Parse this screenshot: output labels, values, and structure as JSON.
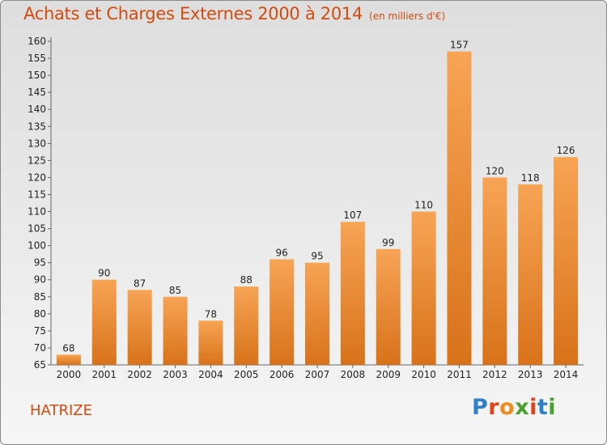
{
  "header": {
    "title": "Achats et Charges Externes 2000 à 2014",
    "subtitle": "(en milliers d'€)"
  },
  "footer": {
    "city": "HATRIZE",
    "brand": "Proxiti"
  },
  "colors": {
    "accent": "#d24a0e",
    "bar_top": "#f7a455",
    "bar_bottom": "#d8721a"
  },
  "chart_data": {
    "type": "bar",
    "title": "Achats et Charges Externes 2000 à 2014",
    "subtitle": "(en milliers d'€)",
    "xlabel": "",
    "ylabel": "",
    "categories": [
      "2000",
      "2001",
      "2002",
      "2003",
      "2004",
      "2005",
      "2006",
      "2007",
      "2008",
      "2009",
      "2010",
      "2011",
      "2012",
      "2013",
      "2014"
    ],
    "values": [
      68,
      90,
      87,
      85,
      78,
      88,
      96,
      95,
      107,
      99,
      110,
      157,
      120,
      118,
      126
    ],
    "ylim": [
      65,
      160
    ],
    "yticks": [
      65,
      70,
      75,
      80,
      85,
      90,
      95,
      100,
      105,
      110,
      115,
      120,
      125,
      130,
      135,
      140,
      145,
      150,
      155,
      160
    ],
    "grid": false,
    "legend": "none"
  }
}
